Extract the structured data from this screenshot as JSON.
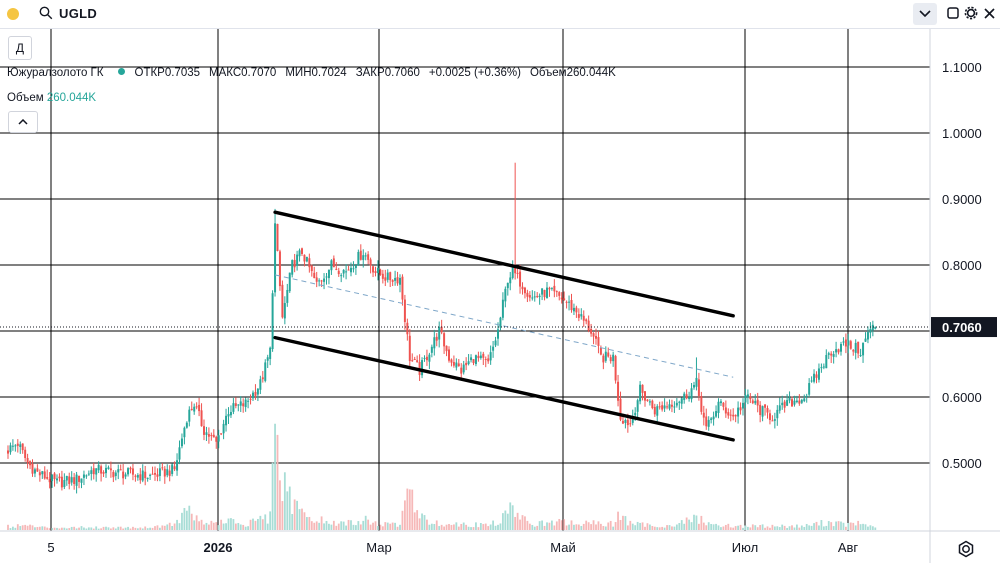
{
  "header": {
    "symbol": "UGLD",
    "period": "Д"
  },
  "legend": {
    "name": "Южуралзолото ГК",
    "open_label": "ОТКР",
    "open": "0.7035",
    "high_label": "МАКС",
    "high": "0.7070",
    "low_label": "МИН",
    "low": "0.7024",
    "close_label": "ЗАКР",
    "close": "0.7060",
    "change": "+0.0025 (+0.36%)",
    "volume_label": "Объем",
    "volume": "260.044K"
  },
  "colors": {
    "up": "#26a69a",
    "down": "#ef5350",
    "vol_up": "#a8ddd6",
    "vol_down": "#f6b8b8",
    "accent": "#131722"
  },
  "chart_data": {
    "type": "candlestick",
    "y_axis": {
      "ticks": [
        0.5,
        0.6,
        0.7,
        0.8,
        0.9,
        1.0,
        1.1
      ],
      "tick_labels": [
        "0.5000",
        "0.6000",
        "0.7000",
        "0.8000",
        "0.9000",
        "1.0000",
        "1.1000"
      ],
      "range": [
        0.41,
        1.15
      ]
    },
    "x_axis": {
      "ticks": [
        "5",
        "2026",
        "Мар",
        "Май",
        "Июл",
        "Авг"
      ]
    },
    "last_price_label": "0.7060",
    "anchors": [
      {
        "bar": 0,
        "close": 0.52,
        "vol": 0.03
      },
      {
        "bar": 4,
        "close": 0.53,
        "vol": 0.03
      },
      {
        "bar": 8,
        "close": 0.5,
        "vol": 0.04
      },
      {
        "bar": 12,
        "close": 0.485,
        "vol": 0.02
      },
      {
        "bar": 20,
        "close": 0.47,
        "vol": 0.02
      },
      {
        "bar": 28,
        "close": 0.475,
        "vol": 0.02
      },
      {
        "bar": 35,
        "close": 0.49,
        "vol": 0.02
      },
      {
        "bar": 45,
        "close": 0.485,
        "vol": 0.02
      },
      {
        "bar": 58,
        "close": 0.48,
        "vol": 0.02
      },
      {
        "bar": 68,
        "close": 0.49,
        "vol": 0.05
      },
      {
        "bar": 73,
        "close": 0.57,
        "vol": 0.15
      },
      {
        "bar": 76,
        "close": 0.59,
        "vol": 0.1
      },
      {
        "bar": 80,
        "close": 0.55,
        "vol": 0.06
      },
      {
        "bar": 85,
        "close": 0.53,
        "vol": 0.05
      },
      {
        "bar": 90,
        "close": 0.58,
        "vol": 0.07
      },
      {
        "bar": 97,
        "close": 0.59,
        "vol": 0.04
      },
      {
        "bar": 103,
        "close": 0.62,
        "vol": 0.08
      },
      {
        "bar": 107,
        "close": 0.67,
        "vol": 0.1
      },
      {
        "bar": 109,
        "close": 0.86,
        "vol": 0.6
      },
      {
        "bar": 112,
        "close": 0.72,
        "vol": 0.35
      },
      {
        "bar": 116,
        "close": 0.8,
        "vol": 0.2
      },
      {
        "bar": 120,
        "close": 0.82,
        "vol": 0.12
      },
      {
        "bar": 126,
        "close": 0.77,
        "vol": 0.08
      },
      {
        "bar": 132,
        "close": 0.8,
        "vol": 0.05
      },
      {
        "bar": 138,
        "close": 0.79,
        "vol": 0.05
      },
      {
        "bar": 145,
        "close": 0.82,
        "vol": 0.08
      },
      {
        "bar": 150,
        "close": 0.79,
        "vol": 0.05
      },
      {
        "bar": 155,
        "close": 0.78,
        "vol": 0.04
      },
      {
        "bar": 160,
        "close": 0.78,
        "vol": 0.05
      },
      {
        "bar": 164,
        "close": 0.66,
        "vol": 0.3
      },
      {
        "bar": 168,
        "close": 0.64,
        "vol": 0.1
      },
      {
        "bar": 172,
        "close": 0.67,
        "vol": 0.06
      },
      {
        "bar": 176,
        "close": 0.7,
        "vol": 0.06
      },
      {
        "bar": 180,
        "close": 0.66,
        "vol": 0.04
      },
      {
        "bar": 185,
        "close": 0.64,
        "vol": 0.05
      },
      {
        "bar": 190,
        "close": 0.66,
        "vol": 0.04
      },
      {
        "bar": 196,
        "close": 0.65,
        "vol": 0.04
      },
      {
        "bar": 200,
        "close": 0.7,
        "vol": 0.06
      },
      {
        "bar": 204,
        "close": 0.78,
        "vol": 0.12
      },
      {
        "bar": 206,
        "close": 0.79,
        "vol": 0.2
      },
      {
        "bar": 210,
        "close": 0.77,
        "vol": 0.08
      },
      {
        "bar": 214,
        "close": 0.75,
        "vol": 0.05
      },
      {
        "bar": 220,
        "close": 0.76,
        "vol": 0.05
      },
      {
        "bar": 226,
        "close": 0.75,
        "vol": 0.06
      },
      {
        "bar": 232,
        "close": 0.73,
        "vol": 0.05
      },
      {
        "bar": 238,
        "close": 0.7,
        "vol": 0.05
      },
      {
        "bar": 242,
        "close": 0.66,
        "vol": 0.05
      },
      {
        "bar": 247,
        "close": 0.66,
        "vol": 0.05
      },
      {
        "bar": 250,
        "close": 0.57,
        "vol": 0.12
      },
      {
        "bar": 254,
        "close": 0.56,
        "vol": 0.05
      },
      {
        "bar": 258,
        "close": 0.61,
        "vol": 0.04
      },
      {
        "bar": 264,
        "close": 0.58,
        "vol": 0.04
      },
      {
        "bar": 270,
        "close": 0.59,
        "vol": 0.03
      },
      {
        "bar": 276,
        "close": 0.6,
        "vol": 0.06
      },
      {
        "bar": 281,
        "close": 0.62,
        "vol": 0.1
      },
      {
        "bar": 285,
        "close": 0.55,
        "vol": 0.05
      },
      {
        "bar": 290,
        "close": 0.59,
        "vol": 0.04
      },
      {
        "bar": 296,
        "close": 0.57,
        "vol": 0.03
      },
      {
        "bar": 302,
        "close": 0.6,
        "vol": 0.03
      },
      {
        "bar": 307,
        "close": 0.58,
        "vol": 0.03
      },
      {
        "bar": 312,
        "close": 0.57,
        "vol": 0.03
      },
      {
        "bar": 318,
        "close": 0.59,
        "vol": 0.03
      },
      {
        "bar": 325,
        "close": 0.6,
        "vol": 0.03
      },
      {
        "bar": 331,
        "close": 0.64,
        "vol": 0.05
      },
      {
        "bar": 336,
        "close": 0.67,
        "vol": 0.06
      },
      {
        "bar": 342,
        "close": 0.68,
        "vol": 0.04
      },
      {
        "bar": 348,
        "close": 0.67,
        "vol": 0.05
      },
      {
        "bar": 352,
        "close": 0.7035,
        "vol": 0.03
      },
      {
        "bar": 354,
        "close": 0.706,
        "vol": 0.03
      }
    ],
    "trend_lines": [
      {
        "name": "upper",
        "style": "solid",
        "from": {
          "bar": 109,
          "price": 0.88
        },
        "to": {
          "bar": 296,
          "price": 0.723
        }
      },
      {
        "name": "lower",
        "style": "solid",
        "from": {
          "bar": 109,
          "price": 0.69
        },
        "to": {
          "bar": 296,
          "price": 0.535
        }
      },
      {
        "name": "mid",
        "style": "dashed",
        "from": {
          "bar": 109,
          "price": 0.785
        },
        "to": {
          "bar": 296,
          "price": 0.63
        }
      }
    ],
    "wick_spikes": [
      {
        "bar": 207,
        "high": 0.955
      },
      {
        "bar": 109,
        "high": 0.885
      },
      {
        "bar": 281,
        "high": 0.66
      }
    ],
    "volume_range": [
      0,
      1.0
    ]
  }
}
